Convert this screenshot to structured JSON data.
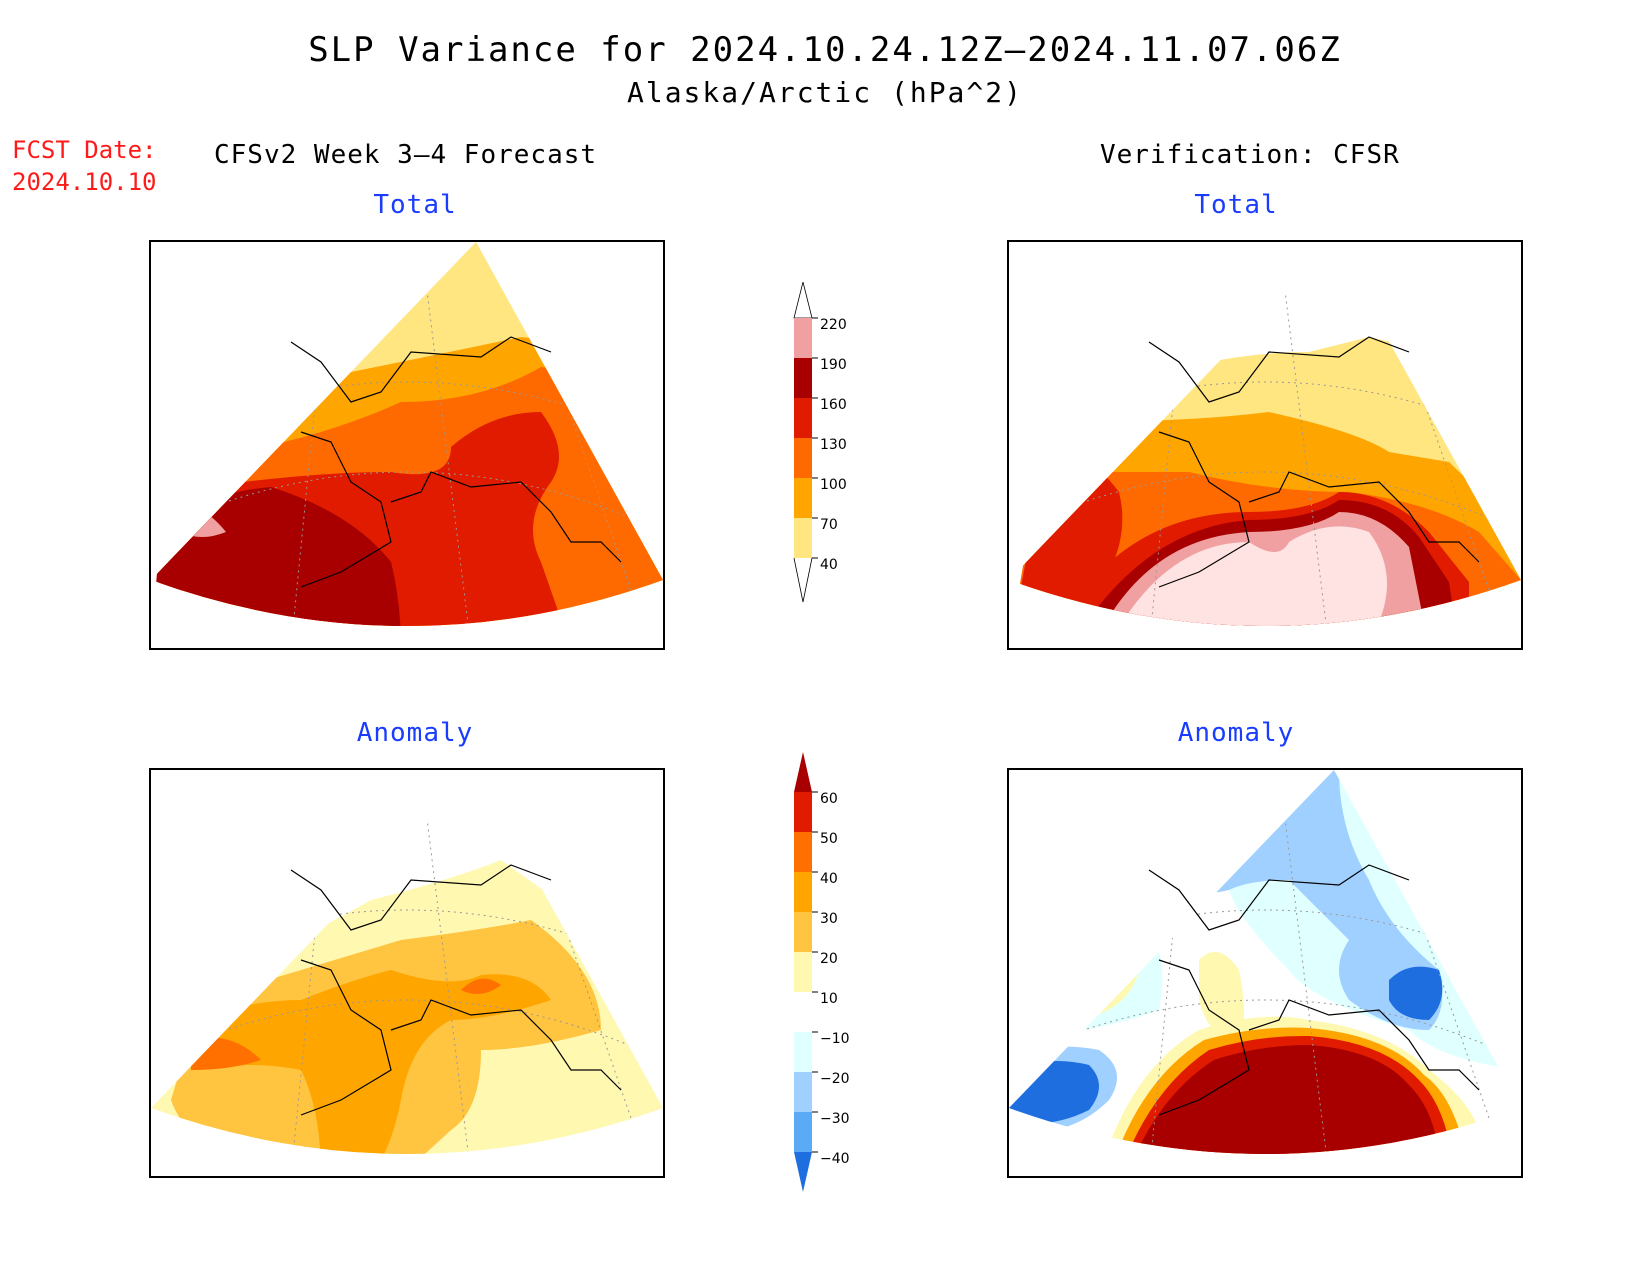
{
  "title": {
    "line1": "SLP Variance for 2024.10.24.12Z–2024.11.07.06Z",
    "line2": "Alaska/Arctic (hPa^2)"
  },
  "fcst_date": {
    "label": "FCST Date:",
    "value": "2024.10.10"
  },
  "columns": {
    "left": "CFSv2 Week 3–4 Forecast",
    "right": "Verification: CFSR"
  },
  "panels": {
    "forecast_total": {
      "title": "Total"
    },
    "verification_total": {
      "title": "Total"
    },
    "forecast_anomaly": {
      "title": "Anomaly"
    },
    "verification_anomaly": {
      "title": "Anomaly"
    }
  },
  "colors": {
    "c40": "#ffe680",
    "c70": "#ffa500",
    "c100": "#ff6a00",
    "c130": "#e01b00",
    "c160": "#a80000",
    "c190": "#f0a0a0",
    "c220": "#ffe2e2",
    "a10": "#fff8b0",
    "a20": "#ffc440",
    "a30": "#ffa500",
    "a40": "#ff7000",
    "a50": "#e01b00",
    "a60": "#a80000",
    "n10": "#e0ffff",
    "n20": "#a0d0ff",
    "n30": "#5aaaf5",
    "n40": "#1f6ee0"
  },
  "total_colorbar": {
    "levels": [
      "40",
      "70",
      "100",
      "130",
      "160",
      "190",
      "220"
    ]
  },
  "anomaly_colorbar": {
    "levels": [
      "60",
      "50",
      "40",
      "30",
      "20",
      "10",
      "−10",
      "−20",
      "−30",
      "−40"
    ]
  }
}
